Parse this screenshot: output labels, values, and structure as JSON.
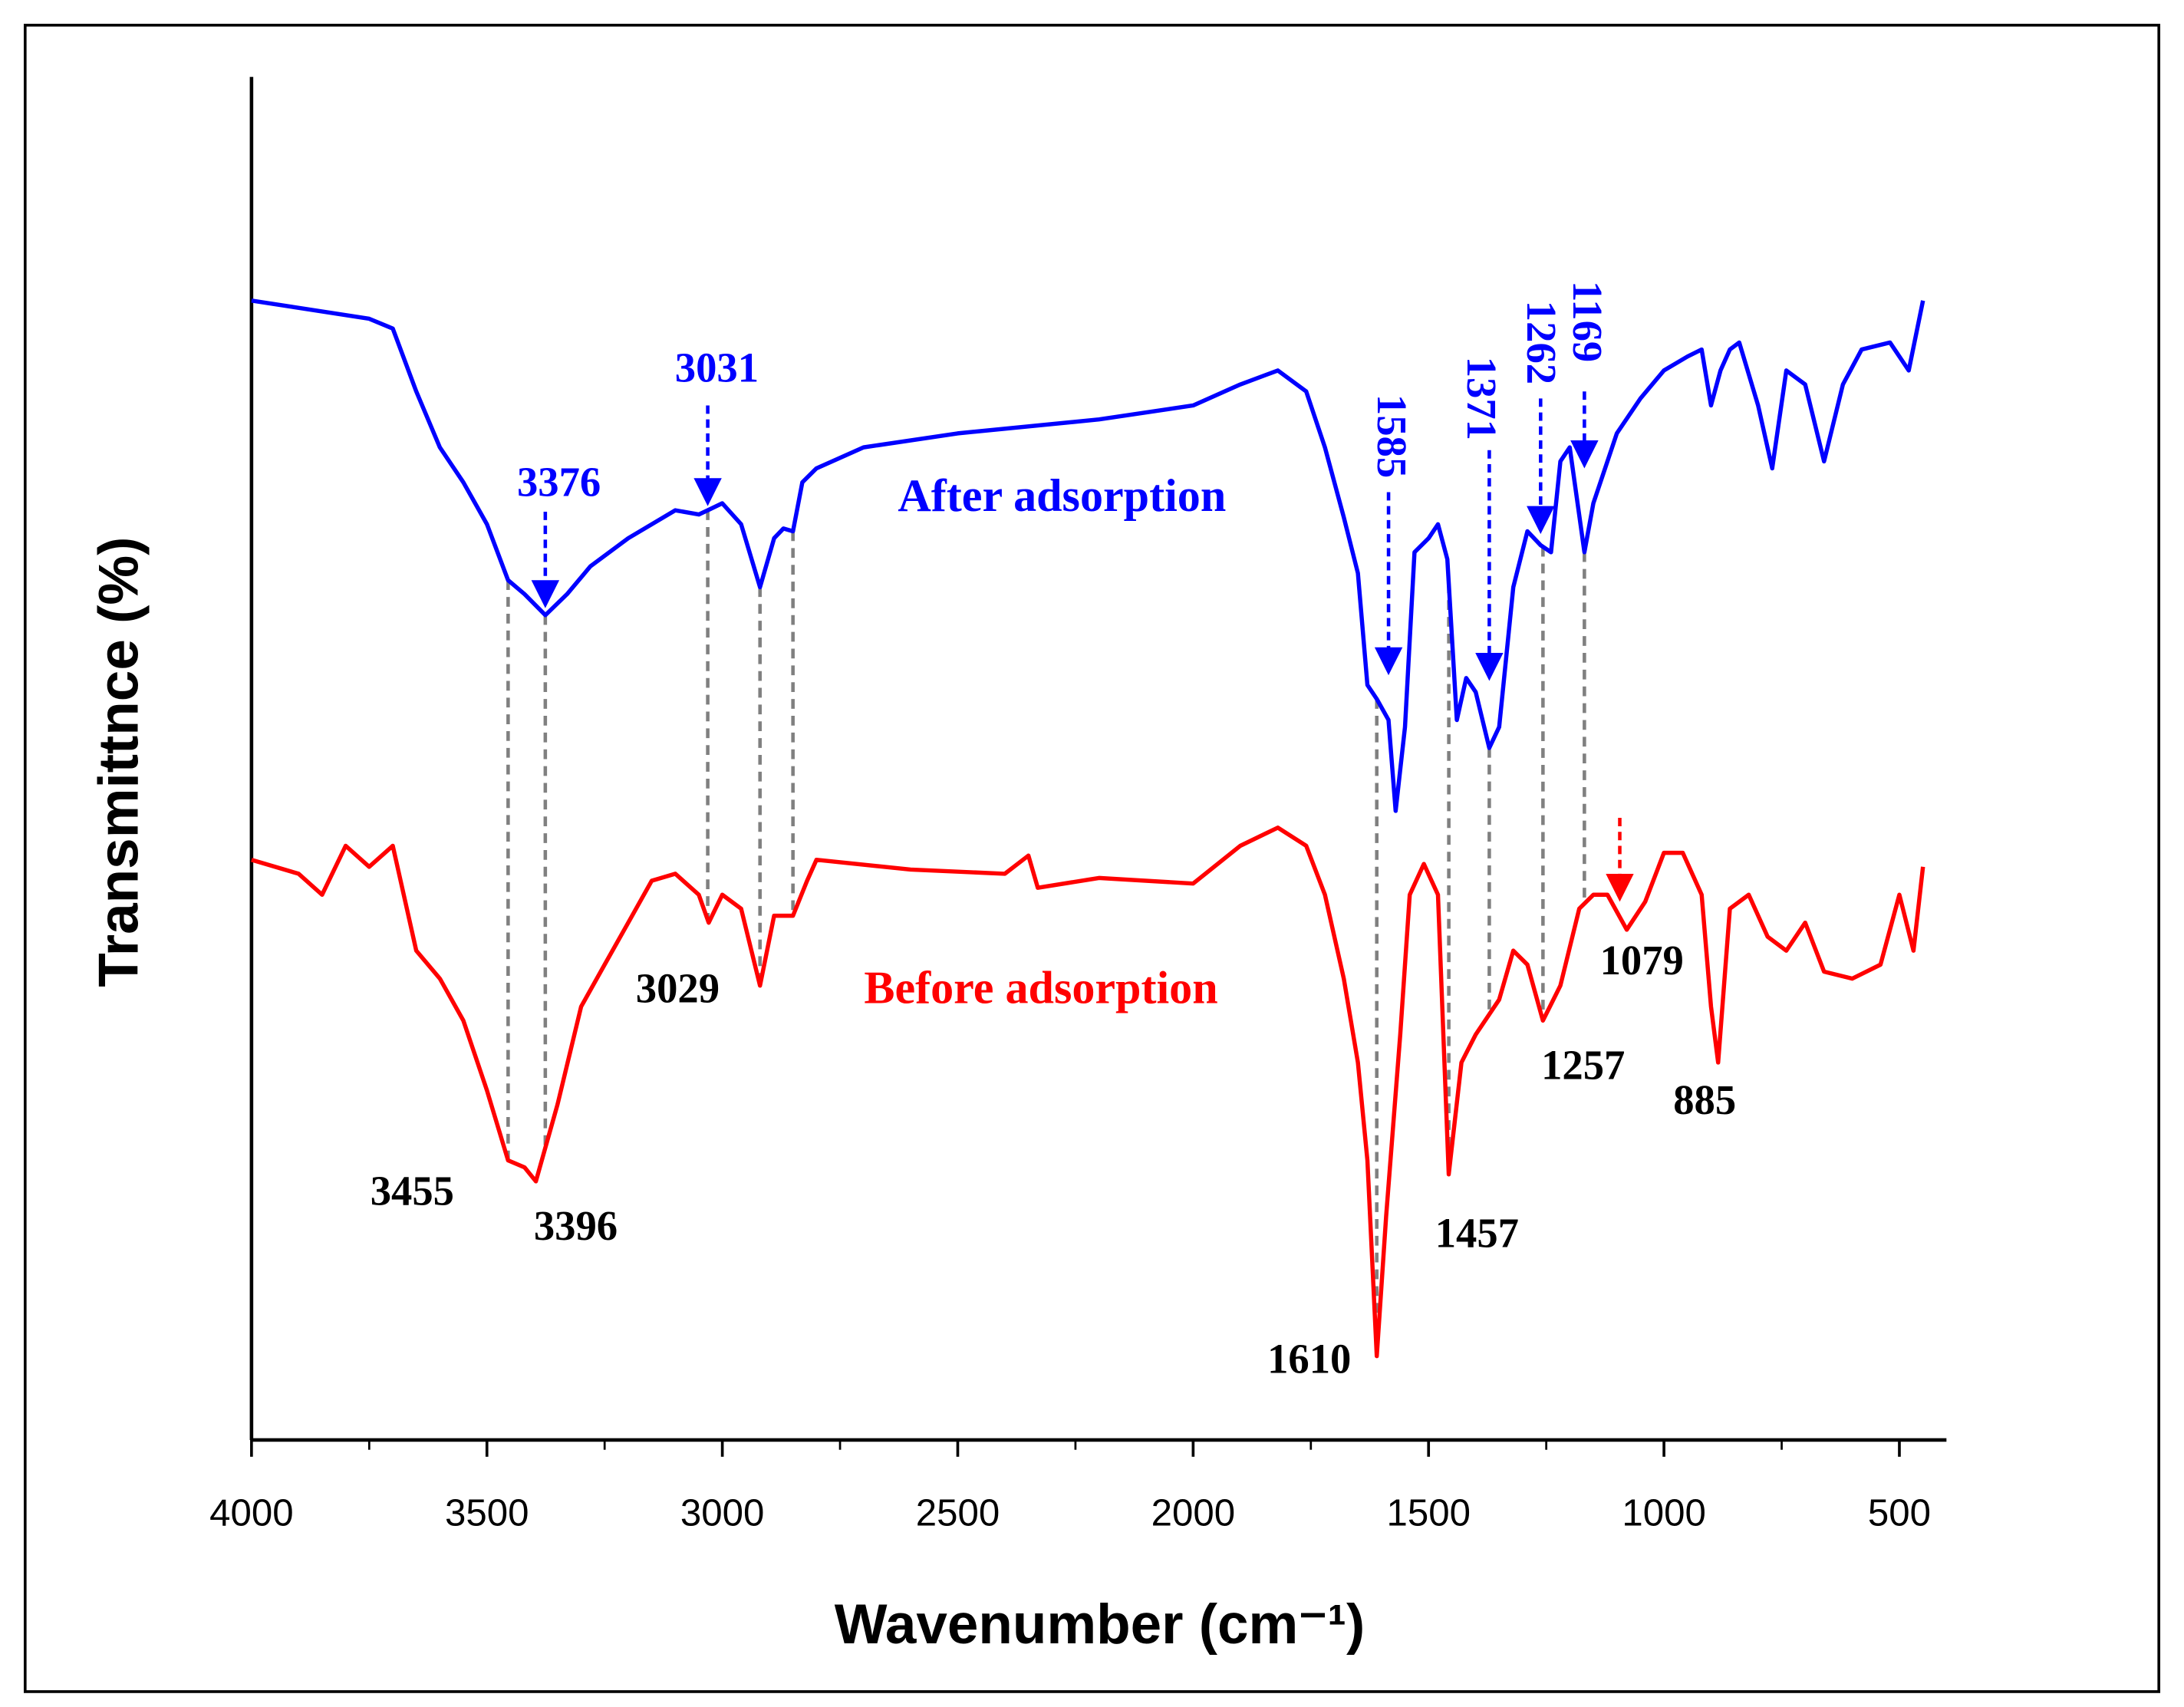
{
  "chart_data": {
    "type": "line",
    "xlabel": "Wavenumber (cm⁻¹)",
    "ylabel": "Transmittnce (%)",
    "xlim": [
      4000,
      400
    ],
    "xticks": [
      4000,
      3500,
      3000,
      2500,
      2000,
      1500,
      1000,
      500
    ],
    "ylim": [
      0,
      975
    ],
    "series": [
      {
        "name": "After adsorption",
        "color": "#0000ff",
        "x": [
          4000,
          3750,
          3700,
          3650,
          3600,
          3550,
          3500,
          3455,
          3420,
          3376,
          3330,
          3280,
          3200,
          3100,
          3050,
          3031,
          3000,
          2960,
          2920,
          2890,
          2870,
          2850,
          2830,
          2800,
          2700,
          2500,
          2200,
          2000,
          1900,
          1820,
          1760,
          1720,
          1680,
          1650,
          1630,
          1610,
          1585,
          1570,
          1550,
          1530,
          1500,
          1480,
          1460,
          1440,
          1420,
          1400,
          1371,
          1350,
          1320,
          1290,
          1262,
          1240,
          1220,
          1200,
          1169,
          1150,
          1100,
          1050,
          1000,
          950,
          920,
          900,
          880,
          860,
          840,
          800,
          770,
          740,
          700,
          660,
          620,
          580,
          520,
          480,
          450
        ],
        "values": [
          815,
          802,
          795,
          750,
          710,
          685,
          655,
          615,
          605,
          590,
          605,
          625,
          645,
          665,
          662,
          665,
          670,
          655,
          610,
          645,
          652,
          650,
          685,
          695,
          710,
          720,
          730,
          740,
          755,
          765,
          750,
          710,
          660,
          620,
          540,
          530,
          515,
          450,
          510,
          635,
          645,
          655,
          630,
          515,
          545,
          535,
          495,
          510,
          610,
          650,
          640,
          635,
          700,
          710,
          635,
          670,
          720,
          745,
          765,
          775,
          780,
          740,
          765,
          780,
          785,
          740,
          695,
          765,
          755,
          700,
          755,
          780,
          785,
          765,
          815
        ]
      },
      {
        "name": "Before adsorption",
        "color": "#ff0000",
        "x": [
          4000,
          3900,
          3850,
          3800,
          3750,
          3700,
          3650,
          3600,
          3550,
          3500,
          3455,
          3420,
          3396,
          3350,
          3300,
          3250,
          3200,
          3150,
          3100,
          3050,
          3029,
          3000,
          2960,
          2920,
          2890,
          2850,
          2820,
          2800,
          2600,
          2400,
          2350,
          2330,
          2200,
          2000,
          1900,
          1820,
          1760,
          1720,
          1680,
          1650,
          1630,
          1610,
          1590,
          1560,
          1540,
          1510,
          1480,
          1457,
          1430,
          1400,
          1350,
          1320,
          1290,
          1257,
          1220,
          1180,
          1150,
          1120,
          1079,
          1040,
          1000,
          960,
          920,
          900,
          885,
          860,
          820,
          780,
          740,
          700,
          660,
          600,
          540,
          500,
          470,
          450
        ],
        "values": [
          415,
          405,
          390,
          425,
          410,
          425,
          350,
          330,
          300,
          250,
          200,
          195,
          185,
          240,
          310,
          340,
          370,
          400,
          405,
          390,
          370,
          390,
          380,
          325,
          375,
          375,
          400,
          415,
          408,
          405,
          418,
          395,
          402,
          398,
          425,
          438,
          425,
          390,
          330,
          270,
          200,
          60,
          160,
          290,
          390,
          412,
          390,
          190,
          270,
          290,
          315,
          350,
          340,
          300,
          325,
          380,
          390,
          390,
          365,
          385,
          420,
          420,
          390,
          310,
          270,
          380,
          390,
          360,
          350,
          370,
          335,
          330,
          340,
          390,
          350,
          410
        ]
      }
    ],
    "reference_lines": [
      3455,
      3376,
      3031,
      2920,
      2850,
      1610,
      1457,
      1371,
      1257,
      1169
    ],
    "annotations": [
      {
        "text": "3376",
        "x": 3376,
        "color": "#0000ff",
        "arrow": "#0000ff",
        "rotate": false
      },
      {
        "text": "3031",
        "x": 3031,
        "color": "#0000ff",
        "arrow": "#0000ff",
        "rotate": false
      },
      {
        "text": "1585",
        "x": 1585,
        "color": "#0000ff",
        "arrow": "#0000ff",
        "rotate": true
      },
      {
        "text": "1371",
        "x": 1371,
        "color": "#0000ff",
        "arrow": "#0000ff",
        "rotate": true
      },
      {
        "text": "1262",
        "x": 1262,
        "color": "#0000ff",
        "arrow": "#0000ff",
        "rotate": true
      },
      {
        "text": "1169",
        "x": 1169,
        "color": "#0000ff",
        "arrow": "#0000ff",
        "rotate": true
      },
      {
        "text": "3455",
        "x": 3455,
        "color": "#000000",
        "rotate": false
      },
      {
        "text": "3396",
        "x": 3396,
        "color": "#000000",
        "rotate": false
      },
      {
        "text": "3029",
        "x": 3029,
        "color": "#000000",
        "rotate": false
      },
      {
        "text": "1610",
        "x": 1610,
        "color": "#000000",
        "rotate": false
      },
      {
        "text": "1457",
        "x": 1457,
        "color": "#000000",
        "rotate": false
      },
      {
        "text": "1257",
        "x": 1257,
        "color": "#000000",
        "rotate": false
      },
      {
        "text": "1079",
        "x": 1079,
        "color": "#000000",
        "arrow": "#ff0000",
        "rotate": false
      },
      {
        "text": "885",
        "x": 885,
        "color": "#000000",
        "rotate": false
      }
    ]
  }
}
